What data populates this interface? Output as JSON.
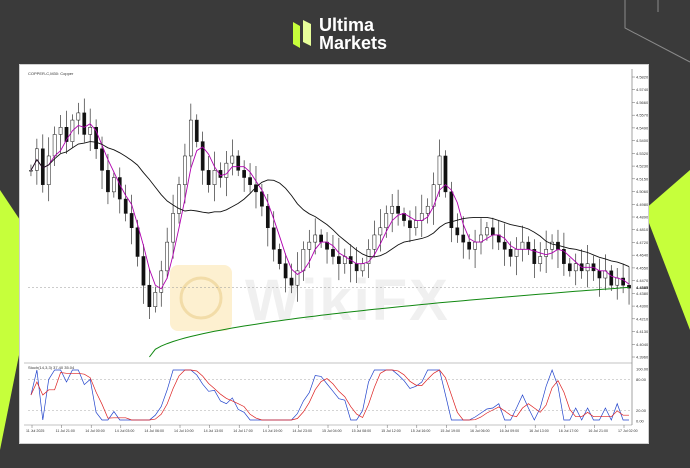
{
  "brand": {
    "line1": "Ultima",
    "line2": "Markets",
    "accent_color": "#c6ff3b",
    "icon": "ultima-logo-icon"
  },
  "chart": {
    "title": "COPPER-C,M30: Copper",
    "oscillator_label": "Stoch(14,3,3) 37.40 35.04",
    "watermark": "WikiFX",
    "price_ticks": [
      "4.5820",
      "4.5740",
      "4.5660",
      "4.5570",
      "4.5490",
      "4.5400",
      "4.5320",
      "4.5230",
      "4.5150",
      "4.5060",
      "4.4980",
      "4.4890",
      "4.4810",
      "4.4720",
      "4.4640",
      "4.4550",
      "4.4470",
      "4.4380",
      "4.4300",
      "4.4210",
      "4.4130",
      "4.4040",
      "4.3960"
    ],
    "current_price": "4.4385",
    "osc_ticks": [
      "100.00",
      "80.00",
      "20.00",
      "0.00"
    ],
    "time_ticks": [
      "11 Jul 2025",
      "11 Jul 21:00",
      "14 Jul 00:00",
      "14 Jul 03:00",
      "14 Jul 06:00",
      "14 Jul 10:00",
      "14 Jul 13:00",
      "14 Jul 17:00",
      "14 Jul 19:00",
      "14 Jul 23:00",
      "15 Jul 04:00",
      "15 Jul 08:00",
      "15 Jul 12:00",
      "15 Jul 16:00",
      "15 Jul 19:00",
      "16 Jul 06:00",
      "16 Jul 09:00",
      "16 Jul 13:00",
      "16 Jul 17:00",
      "16 Jul 21:00",
      "17 Jul 02:00"
    ]
  },
  "chart_data": {
    "type": "candlestick",
    "title": "COPPER-C,M30: Copper",
    "ylim": [
      4.39,
      4.585
    ],
    "series": [
      {
        "name": "price",
        "color": "#111111"
      },
      {
        "name": "fast MA",
        "color": "#b000b0"
      },
      {
        "name": "slow MA",
        "color": "#111111"
      },
      {
        "name": "long MA",
        "color": "#118811"
      },
      {
        "name": "Stoch %K",
        "color": "#2244cc"
      },
      {
        "name": "Stoch %D",
        "color": "#dd2222"
      }
    ],
    "close": [
      4.52,
      4.535,
      4.51,
      4.53,
      4.545,
      4.55,
      4.54,
      4.555,
      4.56,
      4.545,
      4.55,
      4.535,
      4.52,
      4.505,
      4.515,
      4.5,
      4.49,
      4.48,
      4.46,
      4.44,
      4.425,
      4.435,
      4.45,
      4.47,
      4.49,
      4.51,
      4.53,
      4.555,
      4.54,
      4.52,
      4.51,
      4.52,
      4.515,
      4.525,
      4.53,
      4.52,
      4.515,
      4.51,
      4.505,
      4.495,
      4.48,
      4.465,
      4.455,
      4.445,
      4.44,
      4.45,
      4.465,
      4.47,
      4.475,
      4.47,
      4.465,
      4.46,
      4.455,
      4.46,
      4.455,
      4.45,
      4.455,
      4.465,
      4.475,
      4.48,
      4.49,
      4.495,
      4.49,
      4.485,
      4.48,
      4.485,
      4.49,
      4.495,
      4.51,
      4.53,
      4.505,
      4.48,
      4.475,
      4.47,
      4.465,
      4.47,
      4.475,
      4.48,
      4.475,
      4.47,
      4.465,
      4.46,
      4.465,
      4.47,
      4.465,
      4.455,
      4.46,
      4.465,
      4.47,
      4.465,
      4.455,
      4.45,
      4.455,
      4.45,
      4.455,
      4.45,
      4.445,
      4.45,
      4.44,
      4.445,
      4.44,
      4.438
    ]
  }
}
